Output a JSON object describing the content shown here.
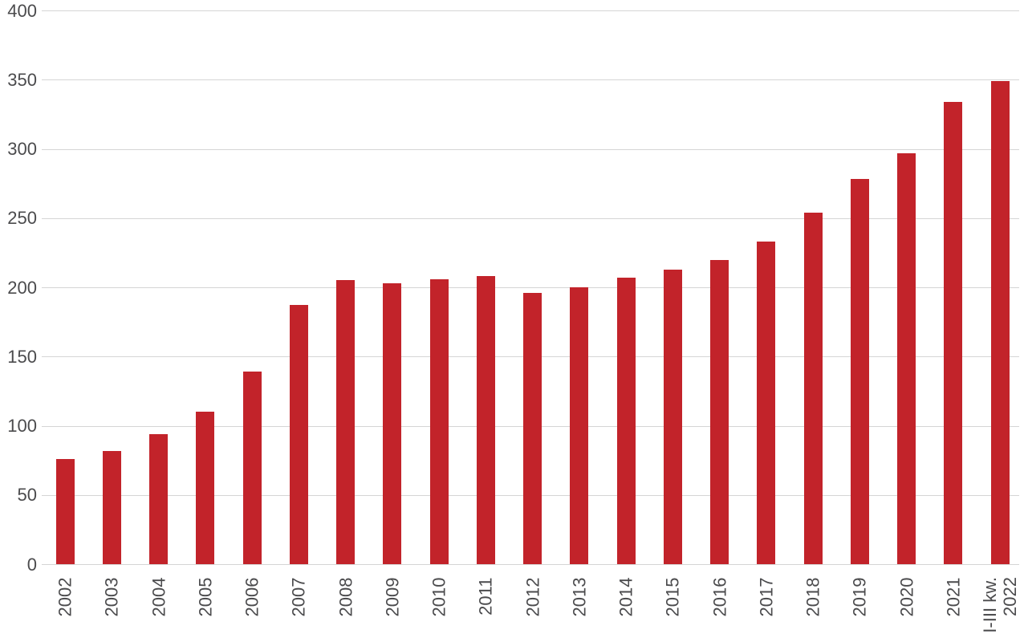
{
  "chart_data": {
    "type": "bar",
    "title": "",
    "xlabel": "",
    "ylabel": "",
    "categories": [
      "2002",
      "2003",
      "2004",
      "2005",
      "2006",
      "2007",
      "2008",
      "2009",
      "2010",
      "2011",
      "2012",
      "2013",
      "2014",
      "2015",
      "2016",
      "2017",
      "2018",
      "2019",
      "2020",
      "2021",
      "I-III kw. 2022"
    ],
    "values": [
      76,
      82,
      94,
      110,
      139,
      187,
      205,
      203,
      206,
      208,
      196,
      200,
      207,
      213,
      220,
      233,
      254,
      278,
      297,
      334,
      349
    ],
    "last_category_display_lines": [
      "I-III kw.",
      "2022"
    ],
    "ylim": [
      0,
      400
    ],
    "ytick_step": 50,
    "ytick_labels": [
      "0",
      "50",
      "100",
      "150",
      "200",
      "250",
      "300",
      "350",
      "400"
    ],
    "grid": true,
    "legend_position": "none",
    "colors": {
      "bar": "#c2232a",
      "gridline": "#d5d5d5",
      "axis_label": "#4b4b4d",
      "background": "#ffffff"
    }
  }
}
